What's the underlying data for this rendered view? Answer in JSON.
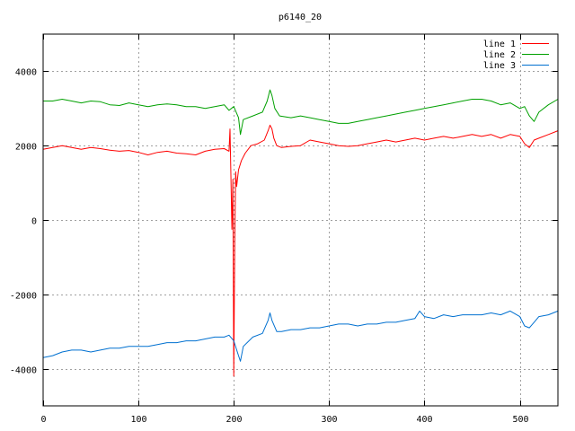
{
  "chart_data": {
    "type": "line",
    "title": "p6140_20",
    "xlabel": "",
    "ylabel": "",
    "xlim": [
      0,
      540
    ],
    "ylim": [
      -5000,
      5000
    ],
    "xticks": [
      0,
      100,
      200,
      300,
      400,
      500
    ],
    "xtick_labels": [
      "0",
      "100",
      "200",
      "300",
      "400",
      "500"
    ],
    "yticks": [
      -4000,
      -2000,
      0,
      2000,
      4000
    ],
    "ytick_labels": [
      "-4000",
      "-2000",
      "0",
      "2000",
      "4000"
    ],
    "grid": true,
    "legend_position": "top-right",
    "series": [
      {
        "name": "line 1",
        "color": "#ff0000",
        "points": [
          [
            0,
            1900
          ],
          [
            10,
            1950
          ],
          [
            20,
            2000
          ],
          [
            30,
            1950
          ],
          [
            40,
            1900
          ],
          [
            50,
            1950
          ],
          [
            60,
            1920
          ],
          [
            70,
            1880
          ],
          [
            80,
            1850
          ],
          [
            90,
            1870
          ],
          [
            100,
            1820
          ],
          [
            110,
            1750
          ],
          [
            120,
            1820
          ],
          [
            130,
            1850
          ],
          [
            140,
            1800
          ],
          [
            150,
            1780
          ],
          [
            160,
            1750
          ],
          [
            170,
            1850
          ],
          [
            180,
            1900
          ],
          [
            190,
            1920
          ],
          [
            195,
            1850
          ],
          [
            196,
            2450
          ],
          [
            197,
            1200
          ],
          [
            198,
            -250
          ],
          [
            199,
            1100
          ],
          [
            200,
            -4200
          ],
          [
            201,
            -600
          ],
          [
            202,
            1300
          ],
          [
            203,
            900
          ],
          [
            205,
            1350
          ],
          [
            208,
            1600
          ],
          [
            212,
            1800
          ],
          [
            218,
            2000
          ],
          [
            225,
            2050
          ],
          [
            232,
            2150
          ],
          [
            236,
            2400
          ],
          [
            238,
            2550
          ],
          [
            240,
            2450
          ],
          [
            242,
            2200
          ],
          [
            245,
            2000
          ],
          [
            250,
            1950
          ],
          [
            260,
            1980
          ],
          [
            270,
            2000
          ],
          [
            280,
            2150
          ],
          [
            290,
            2100
          ],
          [
            300,
            2050
          ],
          [
            310,
            2000
          ],
          [
            320,
            1980
          ],
          [
            330,
            2000
          ],
          [
            340,
            2050
          ],
          [
            350,
            2100
          ],
          [
            360,
            2150
          ],
          [
            370,
            2100
          ],
          [
            380,
            2150
          ],
          [
            390,
            2200
          ],
          [
            400,
            2150
          ],
          [
            410,
            2200
          ],
          [
            420,
            2250
          ],
          [
            430,
            2200
          ],
          [
            440,
            2250
          ],
          [
            450,
            2300
          ],
          [
            460,
            2250
          ],
          [
            470,
            2300
          ],
          [
            480,
            2200
          ],
          [
            490,
            2300
          ],
          [
            500,
            2250
          ],
          [
            505,
            2050
          ],
          [
            510,
            1950
          ],
          [
            515,
            2150
          ],
          [
            520,
            2200
          ],
          [
            530,
            2300
          ],
          [
            540,
            2400
          ]
        ]
      },
      {
        "name": "line 2",
        "color": "#00a000",
        "points": [
          [
            0,
            3200
          ],
          [
            10,
            3200
          ],
          [
            20,
            3250
          ],
          [
            30,
            3200
          ],
          [
            40,
            3150
          ],
          [
            50,
            3200
          ],
          [
            60,
            3180
          ],
          [
            70,
            3100
          ],
          [
            80,
            3080
          ],
          [
            90,
            3150
          ],
          [
            100,
            3100
          ],
          [
            110,
            3050
          ],
          [
            120,
            3100
          ],
          [
            130,
            3120
          ],
          [
            140,
            3100
          ],
          [
            150,
            3050
          ],
          [
            160,
            3050
          ],
          [
            170,
            3000
          ],
          [
            180,
            3050
          ],
          [
            190,
            3100
          ],
          [
            195,
            2950
          ],
          [
            200,
            3050
          ],
          [
            205,
            2750
          ],
          [
            207,
            2300
          ],
          [
            210,
            2700
          ],
          [
            220,
            2800
          ],
          [
            230,
            2900
          ],
          [
            235,
            3200
          ],
          [
            238,
            3500
          ],
          [
            240,
            3350
          ],
          [
            243,
            3000
          ],
          [
            248,
            2800
          ],
          [
            260,
            2750
          ],
          [
            270,
            2800
          ],
          [
            280,
            2750
          ],
          [
            290,
            2700
          ],
          [
            300,
            2650
          ],
          [
            310,
            2600
          ],
          [
            320,
            2600
          ],
          [
            330,
            2650
          ],
          [
            340,
            2700
          ],
          [
            350,
            2750
          ],
          [
            360,
            2800
          ],
          [
            370,
            2850
          ],
          [
            380,
            2900
          ],
          [
            390,
            2950
          ],
          [
            400,
            3000
          ],
          [
            410,
            3050
          ],
          [
            420,
            3100
          ],
          [
            430,
            3150
          ],
          [
            440,
            3200
          ],
          [
            450,
            3250
          ],
          [
            460,
            3250
          ],
          [
            470,
            3200
          ],
          [
            480,
            3100
          ],
          [
            490,
            3150
          ],
          [
            500,
            3000
          ],
          [
            505,
            3050
          ],
          [
            510,
            2800
          ],
          [
            515,
            2650
          ],
          [
            520,
            2900
          ],
          [
            530,
            3100
          ],
          [
            540,
            3250
          ]
        ]
      },
      {
        "name": "line 3",
        "color": "#0070d0",
        "points": [
          [
            0,
            -3700
          ],
          [
            10,
            -3650
          ],
          [
            20,
            -3550
          ],
          [
            30,
            -3500
          ],
          [
            40,
            -3500
          ],
          [
            50,
            -3550
          ],
          [
            60,
            -3500
          ],
          [
            70,
            -3450
          ],
          [
            80,
            -3450
          ],
          [
            90,
            -3400
          ],
          [
            100,
            -3400
          ],
          [
            110,
            -3400
          ],
          [
            120,
            -3350
          ],
          [
            130,
            -3300
          ],
          [
            140,
            -3300
          ],
          [
            150,
            -3250
          ],
          [
            160,
            -3250
          ],
          [
            170,
            -3200
          ],
          [
            180,
            -3150
          ],
          [
            190,
            -3150
          ],
          [
            195,
            -3100
          ],
          [
            200,
            -3250
          ],
          [
            205,
            -3650
          ],
          [
            207,
            -3800
          ],
          [
            210,
            -3400
          ],
          [
            220,
            -3150
          ],
          [
            230,
            -3050
          ],
          [
            236,
            -2700
          ],
          [
            238,
            -2500
          ],
          [
            240,
            -2700
          ],
          [
            245,
            -3000
          ],
          [
            250,
            -3000
          ],
          [
            260,
            -2950
          ],
          [
            270,
            -2950
          ],
          [
            280,
            -2900
          ],
          [
            290,
            -2900
          ],
          [
            300,
            -2850
          ],
          [
            310,
            -2800
          ],
          [
            320,
            -2800
          ],
          [
            330,
            -2850
          ],
          [
            340,
            -2800
          ],
          [
            350,
            -2800
          ],
          [
            360,
            -2750
          ],
          [
            370,
            -2750
          ],
          [
            380,
            -2700
          ],
          [
            390,
            -2650
          ],
          [
            395,
            -2450
          ],
          [
            400,
            -2600
          ],
          [
            410,
            -2650
          ],
          [
            420,
            -2550
          ],
          [
            430,
            -2600
          ],
          [
            440,
            -2550
          ],
          [
            450,
            -2550
          ],
          [
            460,
            -2550
          ],
          [
            470,
            -2500
          ],
          [
            480,
            -2550
          ],
          [
            490,
            -2450
          ],
          [
            500,
            -2600
          ],
          [
            505,
            -2850
          ],
          [
            510,
            -2900
          ],
          [
            515,
            -2750
          ],
          [
            520,
            -2600
          ],
          [
            530,
            -2550
          ],
          [
            540,
            -2450
          ]
        ]
      }
    ]
  }
}
